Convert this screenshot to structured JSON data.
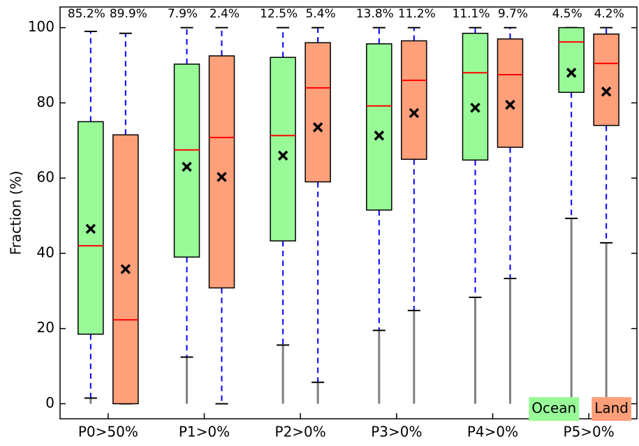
{
  "chart_data": {
    "type": "box",
    "y_label": "Fraction (%)",
    "categories": [
      "P0>50%",
      "P1>0%",
      "P2>0%",
      "P3>0%",
      "P4>0%",
      "P5>0%"
    ],
    "ylim": [
      -4,
      105.5
    ],
    "yticks": [
      0,
      20,
      40,
      60,
      80,
      100
    ],
    "legend": "lower right",
    "series": [
      {
        "name": "Ocean",
        "color": "#98fb98",
        "whislo": [
          1.5,
          12.4,
          15.6,
          19.5,
          28.3,
          49.3
        ],
        "q1": [
          18.5,
          39,
          43.3,
          51.5,
          64.8,
          82.8
        ],
        "med": [
          42,
          67.5,
          71.3,
          79.2,
          88,
          96.2
        ],
        "q3": [
          75,
          90.3,
          92.1,
          95.7,
          98.5,
          100
        ],
        "whishi": [
          99,
          100,
          100,
          100,
          100,
          100
        ],
        "mean": [
          46.5,
          63,
          66,
          71.3,
          78.7,
          88
        ],
        "share_labels": [
          "85.2%",
          "7.9%",
          "12.5%",
          "13.8%",
          "11.1%",
          "4.5%"
        ]
      },
      {
        "name": "Land",
        "color": "#ffa07a",
        "whislo": [
          0,
          0,
          5.7,
          24.8,
          33.3,
          42.8
        ],
        "q1": [
          0,
          30.8,
          59,
          65,
          68.2,
          74
        ],
        "med": [
          22.3,
          70.8,
          84,
          86,
          87.5,
          90.5
        ],
        "q3": [
          71.5,
          92.5,
          96,
          96.5,
          97,
          98.3
        ],
        "whishi": [
          98.5,
          100,
          100,
          100,
          100,
          100
        ],
        "mean": [
          35.8,
          60.3,
          73.5,
          77.3,
          79.5,
          83
        ],
        "share_labels": [
          "89.9%",
          "2.4%",
          "5.4%",
          "11.2%",
          "9.7%",
          "4.2%"
        ]
      }
    ]
  }
}
